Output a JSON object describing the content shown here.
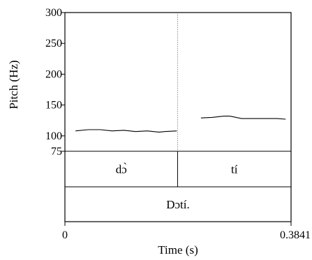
{
  "chart_data": {
    "type": "line",
    "xlabel": "Time (s)",
    "ylabel": "Pitch (Hz)",
    "xlim": [
      0,
      0.3841
    ],
    "ylim": [
      75,
      300
    ],
    "xticks": [
      "0",
      "0.3841"
    ],
    "yticks": [
      {
        "value": 75,
        "label": "75"
      },
      {
        "value": 100,
        "label": "100"
      },
      {
        "value": 150,
        "label": "150"
      },
      {
        "value": 200,
        "label": "200"
      },
      {
        "value": 250,
        "label": "250"
      },
      {
        "value": 300,
        "label": "300"
      }
    ],
    "boundary_time": 0.1914,
    "series": [
      {
        "x": [
          0.018,
          0.04,
          0.06,
          0.08,
          0.1,
          0.12,
          0.14,
          0.16,
          0.17,
          0.19
        ],
        "y": [
          108,
          110,
          110,
          108,
          109,
          107,
          108,
          106,
          107,
          108
        ]
      },
      {
        "x": [
          0.231,
          0.25,
          0.27,
          0.28,
          0.3,
          0.32,
          0.34,
          0.36,
          0.375
        ],
        "y": [
          129,
          130,
          132,
          132,
          128,
          128,
          128,
          128,
          127
        ]
      }
    ],
    "tiers": [
      {
        "intervals": [
          {
            "label": "dɔ̀",
            "start": 0,
            "end": 0.1914
          },
          {
            "label": "tí",
            "start": 0.1914,
            "end": 0.3841
          }
        ]
      },
      {
        "intervals": [
          {
            "label": "Dɔtí.",
            "start": 0,
            "end": 0.3841
          }
        ]
      }
    ]
  }
}
